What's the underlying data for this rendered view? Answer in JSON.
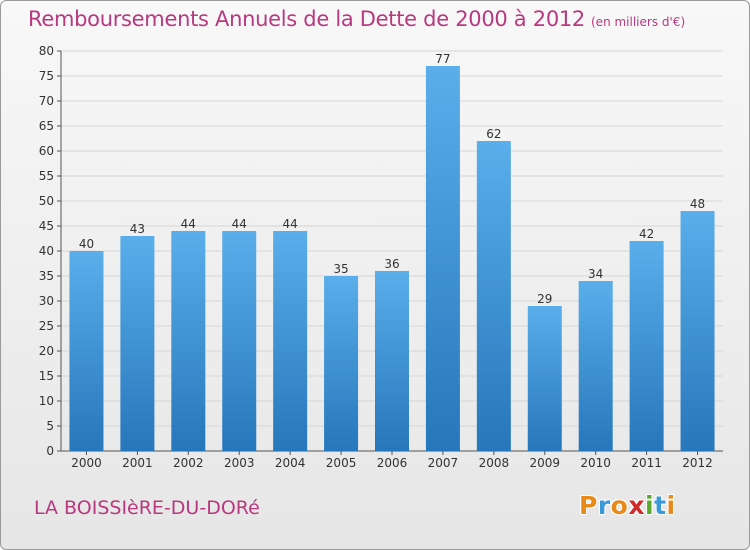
{
  "page": {
    "title": "Remboursements Annuels de la Dette de 2000 à 2012",
    "unit": "(en milliers d'€)",
    "town": "LA BOISSIèRE-DU-DORé",
    "brand": "Proxiti",
    "brand_colors": [
      "#e8891a",
      "#3a9ad9",
      "#e8891a",
      "#d02a2a",
      "#5aaa2a",
      "#3a9ad9",
      "#e8891a"
    ]
  },
  "chart_data": {
    "type": "bar",
    "categories": [
      "2000",
      "2001",
      "2002",
      "2003",
      "2004",
      "2005",
      "2006",
      "2007",
      "2008",
      "2009",
      "2010",
      "2011",
      "2012"
    ],
    "values": [
      40,
      43,
      44,
      44,
      44,
      35,
      36,
      77,
      62,
      29,
      34,
      42,
      48
    ],
    "ylim": [
      0,
      80
    ],
    "yticks": [
      0,
      5,
      10,
      15,
      20,
      25,
      30,
      35,
      40,
      45,
      50,
      55,
      60,
      65,
      70,
      75,
      80
    ],
    "grid": true,
    "bar_color_top": "#5aaeea",
    "bar_color_bottom": "#2677bb",
    "title_color": "#b8397f"
  }
}
